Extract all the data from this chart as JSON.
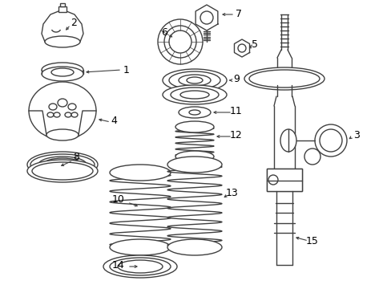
{
  "background_color": "#ffffff",
  "line_color": "#404040",
  "text_color": "#000000",
  "lw": 1.0,
  "fig_width": 4.89,
  "fig_height": 3.6,
  "dpi": 100
}
